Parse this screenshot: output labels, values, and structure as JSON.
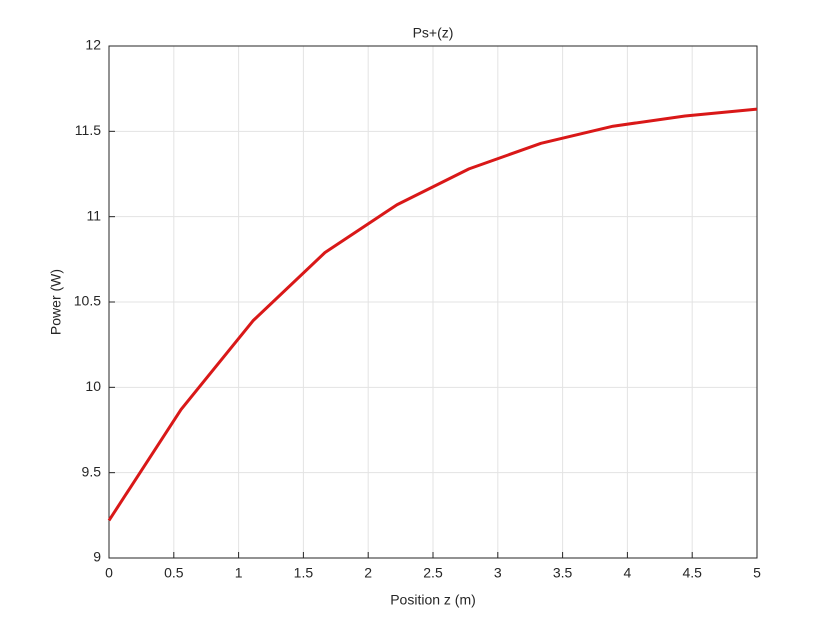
{
  "chart_data": {
    "type": "line",
    "title": "Ps+(z)",
    "x_label": "Position z (m)",
    "y_label": "Power (W)",
    "x": [
      0,
      0.5556,
      1.1111,
      1.6667,
      2.2222,
      2.7778,
      3.3333,
      3.8889,
      4.4444,
      5
    ],
    "series": [
      {
        "name": "Ps+(z)",
        "color": "#d91818",
        "values": [
          9.22,
          9.87,
          10.39,
          10.79,
          11.07,
          11.28,
          11.43,
          11.53,
          11.59,
          11.63
        ]
      }
    ],
    "xlim": [
      0,
      5
    ],
    "xticks": [
      0,
      0.5,
      1,
      1.5,
      2,
      2.5,
      3,
      3.5,
      4,
      4.5,
      5
    ],
    "ylim": [
      9,
      12
    ],
    "yticks": [
      9,
      9.5,
      10,
      10.5,
      11,
      11.5,
      12
    ],
    "grid": true
  }
}
